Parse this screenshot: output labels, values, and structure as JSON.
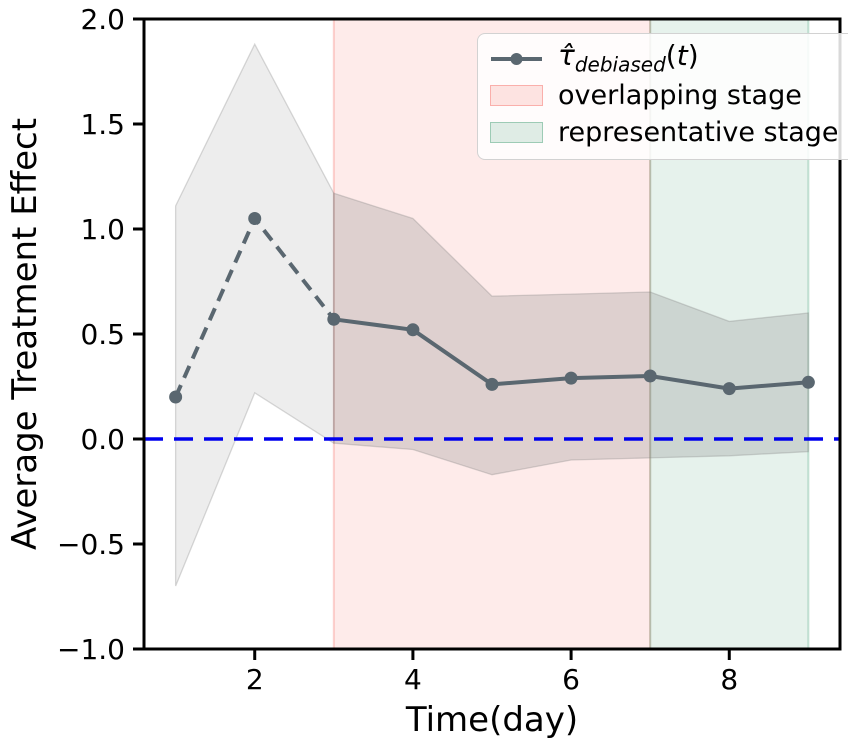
{
  "chart_data": {
    "type": "line",
    "title": "",
    "xlabel": "Time(day)",
    "ylabel": "Average Treatment Effect",
    "xlim": [
      0.6,
      9.4
    ],
    "ylim": [
      -1.0,
      2.0
    ],
    "grid": false,
    "legend_position": "upper right",
    "xticks": {
      "values": [
        2,
        4,
        6,
        8
      ],
      "labels": [
        "2",
        "4",
        "6",
        "8"
      ]
    },
    "yticks": {
      "values": [
        -1.0,
        -0.5,
        0.0,
        0.5,
        1.0,
        1.5,
        2.0
      ],
      "labels": [
        "−1.0",
        "−0.5",
        "0.0",
        "0.5",
        "1.0",
        "1.5",
        "2.0"
      ]
    },
    "x": [
      1,
      2,
      3,
      4,
      5,
      6,
      7,
      8,
      9
    ],
    "series": [
      {
        "name": "tau_debiased(t)",
        "values": [
          0.2,
          1.05,
          0.57,
          0.52,
          0.26,
          0.29,
          0.3,
          0.24,
          0.27
        ],
        "color": "#5a6770",
        "marker": "circle",
        "marker_size": 6.5,
        "line_width": 4,
        "dashed_segment_x": [
          1,
          3
        ],
        "solid_segment_x": [
          3,
          9
        ]
      }
    ],
    "confidence_bands": [
      {
        "x": [
          1,
          2,
          3
        ],
        "upper": [
          1.11,
          1.88,
          1.17
        ],
        "lower": [
          -0.7,
          0.22,
          -0.02
        ],
        "color": "#808080",
        "opacity": 0.14
      },
      {
        "x": [
          3,
          4,
          5,
          6,
          7,
          8,
          9
        ],
        "upper": [
          1.17,
          1.05,
          0.68,
          0.69,
          0.7,
          0.56,
          0.6
        ],
        "lower": [
          -0.02,
          -0.05,
          -0.17,
          -0.1,
          -0.09,
          -0.08,
          -0.06
        ],
        "color": "#808080",
        "opacity": 0.25
      }
    ],
    "regions": [
      {
        "label": "overlapping stage",
        "x_from": 3,
        "x_to": 7,
        "color": "#f4625a",
        "opacity": 0.13
      },
      {
        "label": "representative stage",
        "x_from": 7,
        "x_to": 9,
        "color": "#3a9b6e",
        "opacity": 0.13
      }
    ],
    "reference_line": {
      "y": 0.0,
      "color": "#0000ee",
      "style": "dashed",
      "width": 3.6
    }
  },
  "legend": {
    "items": [
      {
        "kind": "line-marker",
        "tau": "τ̂",
        "subscript": "debiased",
        "paren_open": "(",
        "variable": "t",
        "paren_close": ")"
      },
      {
        "kind": "patch",
        "label": "overlapping stage"
      },
      {
        "kind": "patch",
        "label": "representative stage"
      }
    ]
  }
}
